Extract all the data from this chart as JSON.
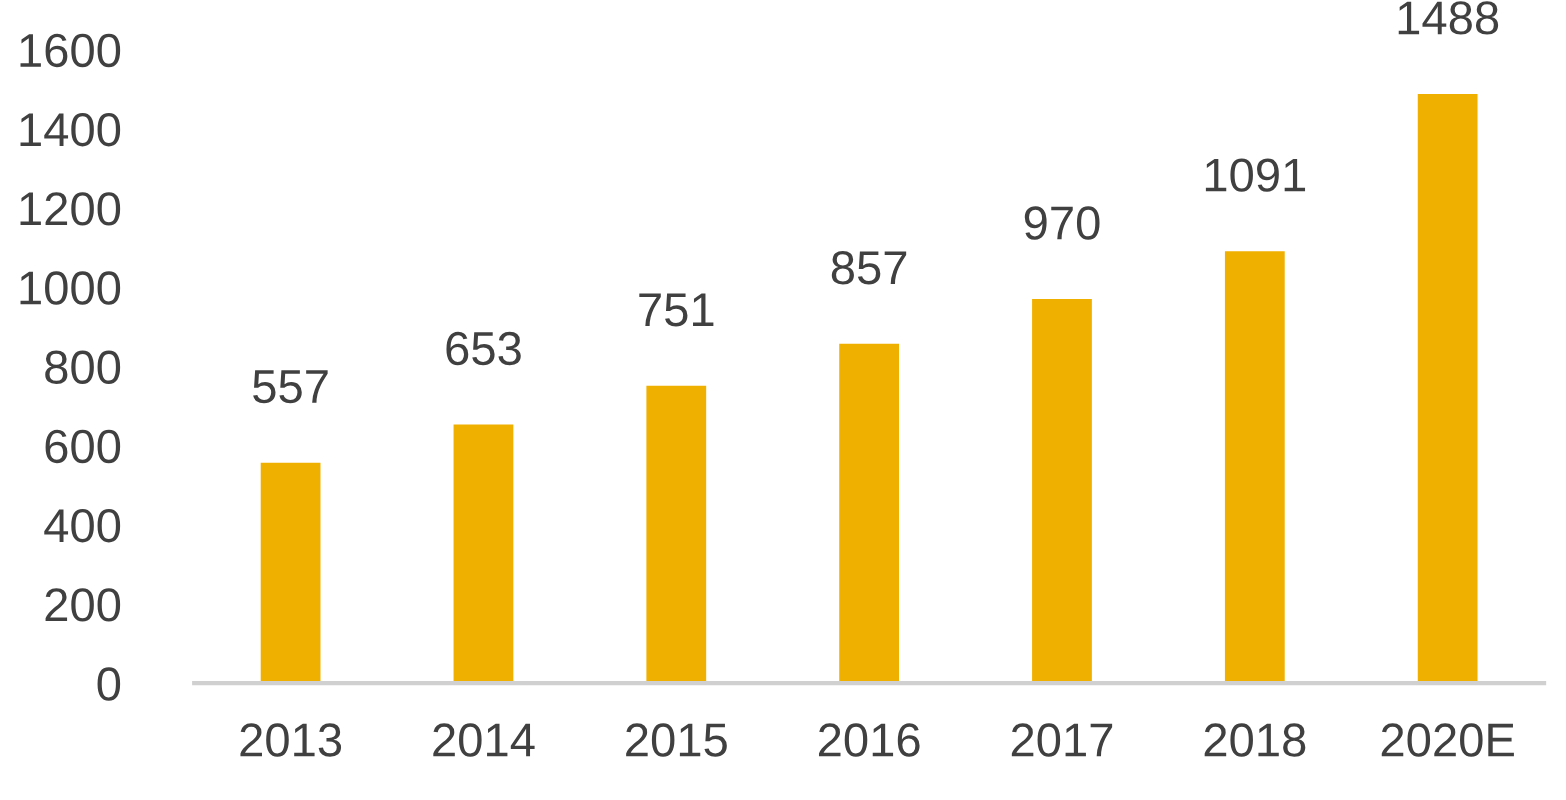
{
  "chart_data": {
    "type": "bar",
    "categories": [
      "2013",
      "2014",
      "2015",
      "2016",
      "2017",
      "2018",
      "2020E"
    ],
    "values": [
      557,
      653,
      751,
      857,
      970,
      1091,
      1488
    ],
    "color": "#f0b000",
    "ylim": [
      0,
      1600
    ],
    "yticks": [
      0,
      200,
      400,
      600,
      800,
      1000,
      1200,
      1400,
      1600
    ],
    "data_labels": true
  }
}
